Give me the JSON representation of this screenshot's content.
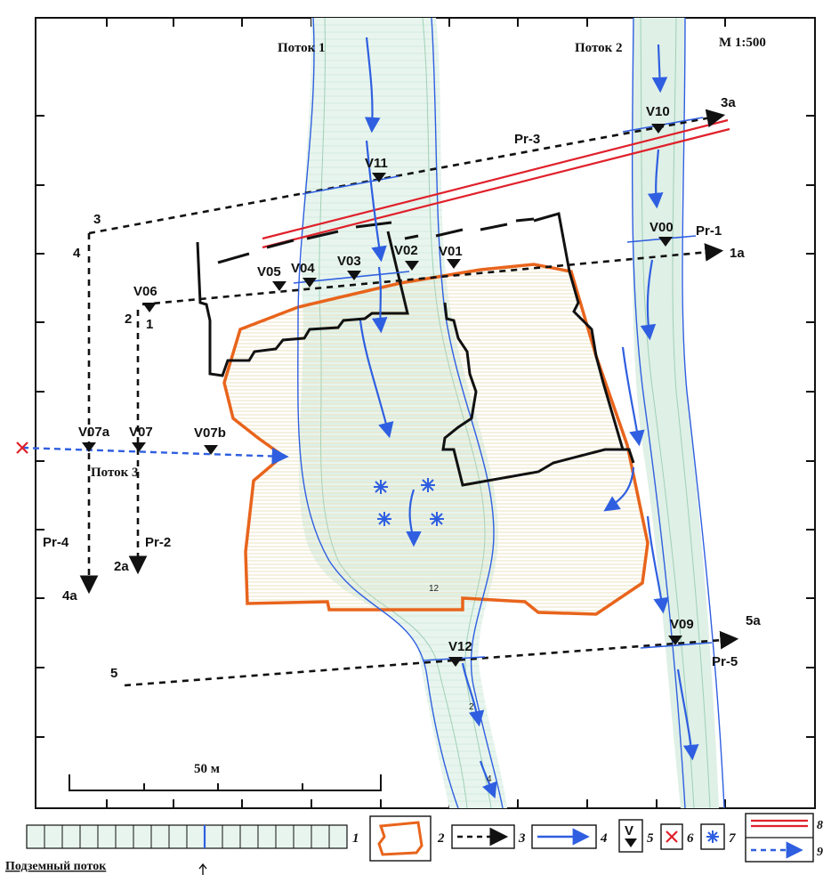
{
  "map": {
    "scale_label": "М 1:500",
    "scale_bar_label": "50 м",
    "streams": {
      "stream1": "Поток 1",
      "stream2": "Поток 2",
      "stream3": "Поток 3"
    },
    "profiles": {
      "pr1": "Pr-1",
      "pr2": "Pr-2",
      "pr3": "Pr-3",
      "pr4": "Pr-4",
      "pr5": "Pr-5"
    },
    "profile_ends": {
      "p1": "1",
      "p1a": "1a",
      "p2": "2",
      "p2a": "2a",
      "p3": "3",
      "p3a": "3a",
      "p4": "4",
      "p4a": "4a",
      "p5": "5",
      "p5a": "5a"
    },
    "points": {
      "v00": "V00",
      "v01": "V01",
      "v02": "V02",
      "v03": "V03",
      "v04": "V04",
      "v05": "V05",
      "v06": "V06",
      "v07": "V07",
      "v07a": "V07a",
      "v07b": "V07b",
      "v09": "V09",
      "v10": "V10",
      "v11": "V11",
      "v12": "V12"
    },
    "contour_labels": {
      "c12": "12",
      "c2": "2",
      "c4": "4"
    }
  },
  "legend": {
    "underground_flow_label": "Подземный поток",
    "items": [
      "1",
      "2",
      "3",
      "4",
      "5",
      "6",
      "7",
      "8",
      "9"
    ],
    "marker_letter": "V"
  },
  "colors": {
    "water_blue": "#2f5fe0",
    "boundary_orange": "#e8641c",
    "road_red": "#e0202a",
    "light_green": "#cfe9dd",
    "hatch_yellow": "#e7d9a0"
  }
}
